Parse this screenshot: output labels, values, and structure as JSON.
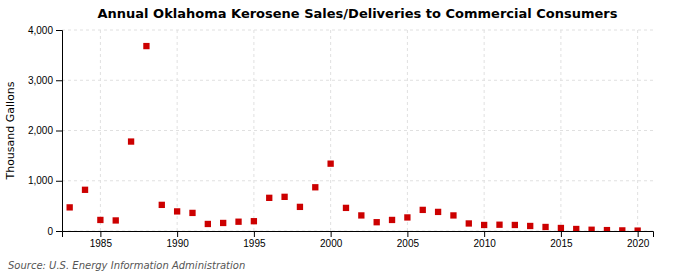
{
  "chart_data": {
    "type": "scatter",
    "title": "Annual Oklahoma Kerosene Sales/Deliveries to Commercial Consumers",
    "ylabel": "Thousand Gallons",
    "annotation": "Source: U.S. Energy Information Administration",
    "color": "#cc0000",
    "marker": "square",
    "grid": true,
    "xlim": [
      1982.5,
      2021
    ],
    "ylim": [
      0,
      4000
    ],
    "xticks": [
      1985,
      1990,
      1995,
      2000,
      2005,
      2010,
      2015,
      2020
    ],
    "yticks": [
      0,
      {
        "value": 1000,
        "label": "1,000"
      },
      {
        "value": 2000,
        "label": "2,000"
      },
      {
        "value": 3000,
        "label": "3,000"
      },
      {
        "value": 4000,
        "label": "4,000"
      }
    ],
    "x": [
      1983,
      1984,
      1985,
      1986,
      1987,
      1988,
      1989,
      1990,
      1991,
      1992,
      1993,
      1994,
      1995,
      1996,
      1997,
      1998,
      1999,
      2000,
      2001,
      2002,
      2003,
      2004,
      2005,
      2006,
      2007,
      2008,
      2009,
      2010,
      2011,
      2012,
      2013,
      2014,
      2015,
      2016,
      2017,
      2018,
      2019,
      2020
    ],
    "values": [
      470,
      820,
      220,
      210,
      1780,
      3680,
      520,
      390,
      360,
      140,
      160,
      185,
      195,
      660,
      680,
      480,
      870,
      1340,
      460,
      310,
      175,
      220,
      270,
      420,
      380,
      310,
      150,
      120,
      125,
      120,
      100,
      80,
      60,
      40,
      25,
      18,
      12,
      8
    ]
  }
}
